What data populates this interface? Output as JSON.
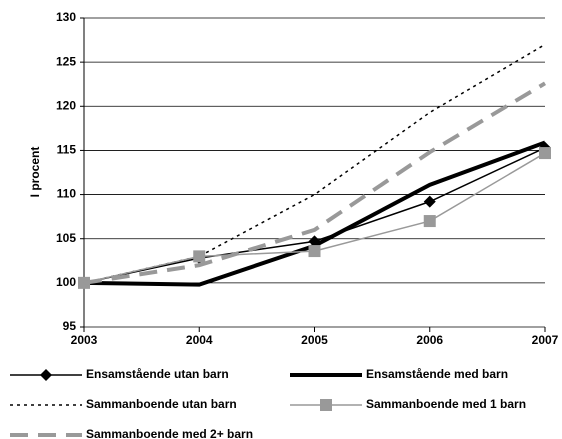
{
  "chart_data": {
    "type": "line",
    "y_label": "I procent",
    "categories": [
      "2003",
      "2004",
      "2005",
      "2006",
      "2007"
    ],
    "ylim": [
      95,
      130
    ],
    "yticks": [
      95,
      100,
      105,
      110,
      115,
      120,
      125,
      130
    ],
    "grid": true,
    "series": [
      {
        "name": "Ensamstående utan barn",
        "color": "#000000",
        "dash": "solid",
        "marker": "diamond",
        "values": [
          100,
          102.8,
          104.7,
          109.2,
          115.3
        ]
      },
      {
        "name": "Ensamstående med barn",
        "color": "#000000",
        "dash": "solid",
        "marker": "none",
        "values": [
          100,
          99.8,
          104.2,
          111.1,
          115.9
        ]
      },
      {
        "name": "Sammanboende utan barn",
        "color": "#000000",
        "dash": "dotted",
        "marker": "none",
        "values": [
          100,
          103,
          110,
          119.3,
          127
        ]
      },
      {
        "name": "Sammanboende med 1 barn",
        "color": "#999999",
        "dash": "solid",
        "marker": "square",
        "values": [
          100,
          103,
          103.6,
          107,
          114.7
        ]
      },
      {
        "name": "Sammanboende med 2+ barn",
        "color": "#999999",
        "dash": "dashed",
        "marker": "none",
        "values": [
          100,
          102,
          106,
          114.8,
          122.6
        ]
      }
    ]
  }
}
